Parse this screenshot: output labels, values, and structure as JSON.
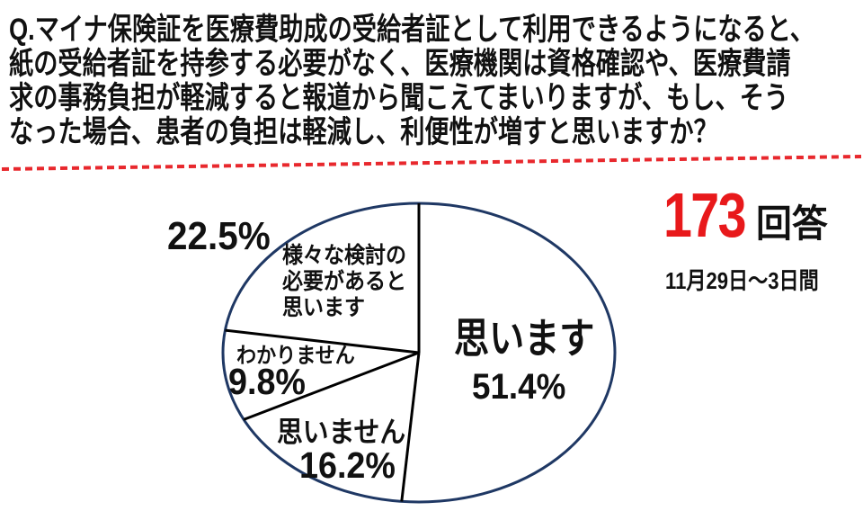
{
  "question": {
    "lines": [
      "Q.マイナ保険証を医療費助成の受給者証として利用できるようになると、",
      "紙の受給者証を持参する必要がなく、医療機関は資格確認や、医療費請",
      "求の事務負担が軽減すると報道から聞こえてまいりますが、もし、そう",
      "なった場合、患者の負担は軽減し、利便性が増すと思いますか？"
    ]
  },
  "divider": {
    "color": "#e8282d",
    "style": "dashed"
  },
  "responses": {
    "number": "173",
    "suffix": "回答",
    "period": "11月29日〜3日間",
    "number_color": "#e8191b"
  },
  "chart_data": {
    "type": "pie",
    "shape": "ellipse",
    "title": "",
    "unit": "%",
    "start_angle_deg": 0,
    "direction": "clockwise",
    "outline_color": "#1f3864",
    "line_color": "#000000",
    "fill_color": "#ffffff",
    "legend_position": "inside",
    "slices": [
      {
        "label": "思います",
        "value": 51.4,
        "pct_text": "51.4%"
      },
      {
        "label": "思いません",
        "value": 16.2,
        "pct_text": "16.2%"
      },
      {
        "label": "わかりません",
        "value": 9.8,
        "pct_text": "9.8%"
      },
      {
        "label": "様々な検討の必要があると思います",
        "value": 22.5,
        "pct_text": "22.5%",
        "label_lines": [
          "様々な検討の",
          "必要があると",
          "思います"
        ]
      }
    ]
  }
}
